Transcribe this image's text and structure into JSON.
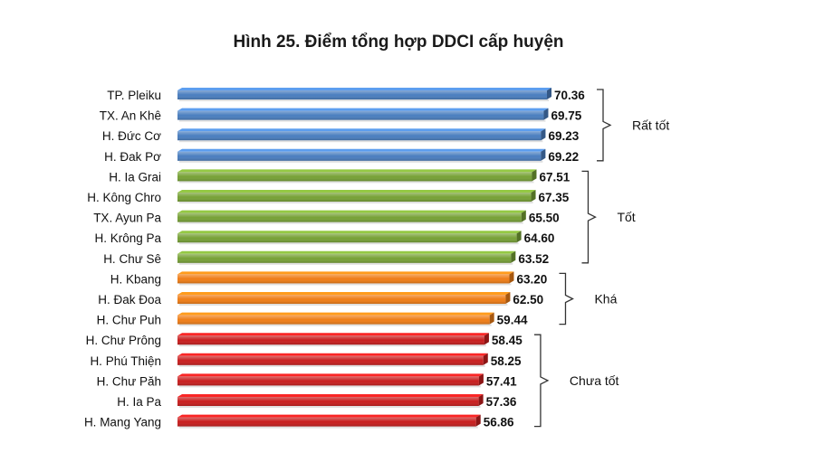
{
  "chart_data": {
    "type": "bar",
    "orientation": "horizontal",
    "title": "Hình 25. Điểm tổng hợp DDCI cấp huyện",
    "xlabel": "",
    "ylabel": "",
    "grid": false,
    "categories": [
      "TP. Pleiku",
      "TX. An Khê",
      "H. Đức Cơ",
      "H. Đak Pơ",
      "H. Ia Grai",
      "H. Kông Chro",
      "TX. Ayun Pa",
      "H. Krông Pa",
      "H. Chư Sê",
      "H. Kbang",
      "H. Đak Đoa",
      "H. Chư Puh",
      "H. Chư Prông",
      "H. Phú Thiện",
      "H. Chư Păh",
      "H. Ia Pa",
      "H. Mang Yang"
    ],
    "values": [
      70.36,
      69.75,
      69.23,
      69.22,
      67.51,
      67.35,
      65.5,
      64.6,
      63.52,
      63.2,
      62.5,
      59.44,
      58.45,
      58.25,
      57.41,
      57.36,
      56.86
    ],
    "value_labels": [
      "70.36",
      "69.75",
      "69.23",
      "69.22",
      "67.51",
      "67.35",
      "65.50",
      "64.60",
      "63.52",
      "63.20",
      "62.50",
      "59.44",
      "58.45",
      "58.25",
      "57.41",
      "57.36",
      "56.86"
    ],
    "groups": [
      {
        "label": "Rất tốt",
        "start": 0,
        "end": 3,
        "color": "#4a7ebf"
      },
      {
        "label": "Tốt",
        "start": 4,
        "end": 8,
        "color": "#77a136"
      },
      {
        "label": "Khá",
        "start": 9,
        "end": 11,
        "color": "#ef7d17"
      },
      {
        "label": "Chưa tốt",
        "start": 12,
        "end": 16,
        "color": "#c81e1e"
      }
    ]
  }
}
